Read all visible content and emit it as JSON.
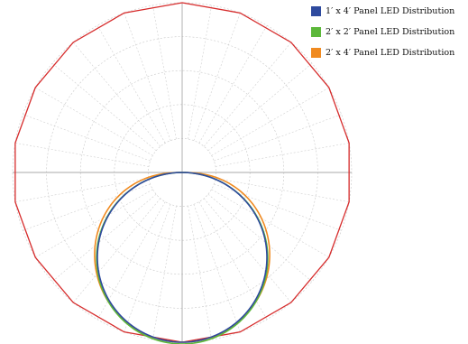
{
  "chart_data": {
    "type": "polar",
    "title": "",
    "radial_grid": true,
    "angular_grid_step_deg": 10,
    "legend_position": "top-right",
    "envelope": {
      "color": "#d62b2b",
      "sides": 18
    },
    "series": [
      {
        "name": "1′ x 4′ Panel LED Distribution",
        "color": "#2e4a9e",
        "shape": "circle-through-center",
        "relative_diameter": 1.0
      },
      {
        "name": "2′ x 2′ Panel LED Distribution",
        "color": "#5cb83a",
        "shape": "circle-through-center",
        "relative_diameter": 1.01
      },
      {
        "name": "2′ x 4′ Panel LED Distribution",
        "color": "#f08a20",
        "shape": "wide-lobe",
        "relative_diameter": 1.0
      }
    ]
  }
}
